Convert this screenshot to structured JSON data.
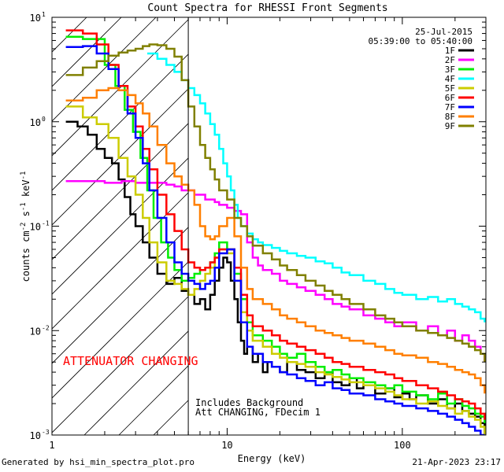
{
  "chart_data": {
    "type": "line",
    "title": "Count Spectra for RHESSI Front Segments",
    "date": "25-Jul-2015",
    "time_range": "05:39:00 to 05:40:00",
    "xlabel": "Energy (keV)",
    "ylabel_main": "counts cm",
    "ylabel_sup1": "-2",
    "ylabel_mid": " s",
    "ylabel_sup2": "-1",
    "ylabel_end": " keV",
    "ylabel_sup3": "-1",
    "xscale": "log",
    "yscale": "log",
    "xlim": [
      1,
      300
    ],
    "ylim": [
      0.001,
      10
    ],
    "x_ticks": [
      {
        "v": 10,
        "label": "10"
      },
      {
        "v": 100,
        "label": "100"
      }
    ],
    "y_ticks": [
      {
        "v": 0.001,
        "base": "10",
        "exp": "-3"
      },
      {
        "v": 0.01,
        "base": "10",
        "exp": "-2"
      },
      {
        "v": 0.1,
        "base": "10",
        "exp": "-1"
      },
      {
        "v": 1,
        "base": "10",
        "exp": "0"
      },
      {
        "v": 10,
        "base": "10",
        "exp": "1"
      }
    ],
    "x_label_1": "1",
    "attenuator_line_x": 6,
    "attenuator_label": "ATTENUATOR CHANGING",
    "notes": [
      "Includes Background",
      "Att CHANGING, FDecim 1"
    ],
    "series": [
      {
        "name": "1F",
        "color": "#000000",
        "x": [
          1.2,
          1.4,
          1.6,
          1.8,
          2.0,
          2.2,
          2.4,
          2.6,
          2.8,
          3.0,
          3.3,
          3.6,
          4.0,
          4.5,
          5.0,
          5.5,
          6.0,
          6.5,
          7,
          7.5,
          8,
          8.5,
          9,
          9.5,
          10,
          10.5,
          11,
          11.5,
          12,
          12.5,
          13,
          14,
          15,
          16,
          17,
          18,
          20,
          22,
          25,
          28,
          32,
          36,
          40,
          45,
          50,
          55,
          60,
          70,
          80,
          90,
          100,
          110,
          120,
          140,
          160,
          180,
          200,
          220,
          240,
          260,
          280,
          295
        ],
        "y": [
          1.0,
          0.9,
          0.75,
          0.55,
          0.45,
          0.4,
          0.28,
          0.19,
          0.13,
          0.1,
          0.07,
          0.05,
          0.035,
          0.028,
          0.032,
          0.024,
          0.022,
          0.018,
          0.02,
          0.016,
          0.022,
          0.03,
          0.04,
          0.05,
          0.045,
          0.03,
          0.02,
          0.012,
          0.008,
          0.006,
          0.007,
          0.005,
          0.006,
          0.004,
          0.005,
          0.0045,
          0.004,
          0.005,
          0.0042,
          0.004,
          0.0035,
          0.004,
          0.0032,
          0.003,
          0.0035,
          0.0028,
          0.003,
          0.0025,
          0.0028,
          0.0023,
          0.0025,
          0.0022,
          0.0024,
          0.002,
          0.0022,
          0.0018,
          0.002,
          0.0017,
          0.0016,
          0.0015,
          0.0013,
          0.001
        ]
      },
      {
        "name": "2F",
        "color": "#ff00ff",
        "x": [
          1.2,
          1.5,
          2.0,
          2.5,
          3.0,
          3.5,
          4.0,
          4.5,
          5.0,
          5.5,
          6.0,
          6.5,
          7,
          7.5,
          8,
          8.5,
          9,
          10,
          11,
          12,
          13,
          14,
          15,
          16,
          18,
          20,
          22,
          25,
          28,
          32,
          36,
          40,
          45,
          50,
          60,
          70,
          80,
          90,
          100,
          120,
          140,
          160,
          180,
          200,
          220,
          240,
          260,
          280,
          295
        ],
        "y": [
          0.27,
          0.27,
          0.26,
          0.27,
          0.26,
          0.26,
          0.26,
          0.25,
          0.24,
          0.22,
          0.22,
          0.2,
          0.2,
          0.18,
          0.18,
          0.17,
          0.16,
          0.15,
          0.14,
          0.13,
          0.07,
          0.05,
          0.042,
          0.038,
          0.035,
          0.03,
          0.028,
          0.026,
          0.024,
          0.022,
          0.02,
          0.018,
          0.017,
          0.016,
          0.014,
          0.013,
          0.012,
          0.011,
          0.012,
          0.01,
          0.011,
          0.009,
          0.01,
          0.008,
          0.009,
          0.008,
          0.007,
          0.006,
          0.005
        ]
      },
      {
        "name": "3F",
        "color": "#00ee00",
        "x": [
          1.2,
          1.5,
          2.0,
          2.3,
          2.6,
          2.9,
          3.2,
          3.5,
          3.8,
          4.2,
          4.6,
          5.0,
          5.5,
          6.0,
          6.5,
          7,
          7.5,
          8,
          8.5,
          9,
          10,
          11,
          12,
          13,
          14,
          16,
          18,
          20,
          22,
          25,
          28,
          32,
          36,
          40,
          45,
          50,
          60,
          70,
          80,
          90,
          100,
          120,
          140,
          160,
          180,
          200,
          220,
          240,
          260,
          280,
          295
        ],
        "y": [
          6.5,
          6.2,
          3.5,
          2.2,
          1.3,
          0.8,
          0.45,
          0.22,
          0.12,
          0.07,
          0.05,
          0.038,
          0.03,
          0.032,
          0.035,
          0.038,
          0.04,
          0.045,
          0.055,
          0.07,
          0.06,
          0.035,
          0.02,
          0.012,
          0.009,
          0.008,
          0.007,
          0.006,
          0.0055,
          0.006,
          0.005,
          0.0045,
          0.004,
          0.0042,
          0.0038,
          0.0035,
          0.0032,
          0.003,
          0.0028,
          0.003,
          0.0026,
          0.0024,
          0.0022,
          0.0025,
          0.002,
          0.0022,
          0.0019,
          0.0018,
          0.0016,
          0.0015,
          0.0013
        ]
      },
      {
        "name": "4F",
        "color": "#00ffff",
        "x": [
          3.5,
          4.0,
          4.5,
          5.0,
          5.5,
          6.0,
          6.5,
          7,
          7.5,
          8,
          8.5,
          9,
          9.5,
          10,
          10.5,
          11,
          11.5,
          12,
          13,
          14,
          15,
          16,
          18,
          20,
          22,
          25,
          28,
          32,
          36,
          40,
          45,
          50,
          60,
          70,
          80,
          90,
          100,
          120,
          140,
          160,
          180,
          200,
          220,
          240,
          260,
          280,
          295
        ],
        "y": [
          4.5,
          4.0,
          3.5,
          3.0,
          2.5,
          2.1,
          1.8,
          1.5,
          1.2,
          0.95,
          0.75,
          0.55,
          0.4,
          0.3,
          0.22,
          0.16,
          0.12,
          0.1,
          0.085,
          0.075,
          0.07,
          0.066,
          0.062,
          0.058,
          0.055,
          0.052,
          0.05,
          0.046,
          0.044,
          0.04,
          0.036,
          0.034,
          0.03,
          0.028,
          0.025,
          0.023,
          0.022,
          0.02,
          0.021,
          0.019,
          0.02,
          0.018,
          0.017,
          0.016,
          0.015,
          0.013,
          0.012
        ]
      },
      {
        "name": "5F",
        "color": "#cccc00",
        "x": [
          1.2,
          1.5,
          1.8,
          2.1,
          2.4,
          2.7,
          3.0,
          3.3,
          3.6,
          4.0,
          4.5,
          5.0,
          5.5,
          6.0,
          6.5,
          7,
          7.5,
          8,
          8.5,
          9,
          10,
          11,
          12,
          13,
          14,
          16,
          18,
          20,
          22,
          25,
          28,
          32,
          36,
          40,
          45,
          50,
          60,
          70,
          80,
          90,
          100,
          120,
          140,
          160,
          180,
          200,
          220,
          240,
          260,
          280,
          295
        ],
        "y": [
          1.4,
          1.1,
          0.95,
          0.7,
          0.45,
          0.3,
          0.2,
          0.12,
          0.07,
          0.045,
          0.03,
          0.028,
          0.025,
          0.022,
          0.025,
          0.03,
          0.035,
          0.04,
          0.05,
          0.06,
          0.055,
          0.03,
          0.015,
          0.01,
          0.008,
          0.007,
          0.006,
          0.0055,
          0.005,
          0.0048,
          0.0045,
          0.004,
          0.0038,
          0.0036,
          0.0034,
          0.0032,
          0.003,
          0.0028,
          0.0026,
          0.0024,
          0.0022,
          0.002,
          0.0021,
          0.0019,
          0.0018,
          0.0016,
          0.0017,
          0.0015,
          0.0014,
          0.0012,
          0.001
        ]
      },
      {
        "name": "6F",
        "color": "#ff0000",
        "x": [
          1.2,
          1.5,
          1.8,
          2.1,
          2.4,
          2.7,
          3.0,
          3.3,
          3.6,
          4.0,
          4.5,
          5.0,
          5.5,
          6.0,
          6.5,
          7,
          7.5,
          8,
          8.5,
          9,
          10,
          11,
          12,
          13,
          14,
          16,
          18,
          20,
          22,
          25,
          28,
          32,
          36,
          40,
          45,
          50,
          60,
          70,
          80,
          90,
          100,
          120,
          140,
          160,
          180,
          200,
          220,
          240,
          260,
          280,
          295
        ],
        "y": [
          7.5,
          7.0,
          5.5,
          3.5,
          2.2,
          1.4,
          0.9,
          0.55,
          0.35,
          0.2,
          0.13,
          0.09,
          0.06,
          0.045,
          0.04,
          0.038,
          0.04,
          0.045,
          0.05,
          0.06,
          0.06,
          0.04,
          0.022,
          0.014,
          0.011,
          0.01,
          0.009,
          0.008,
          0.0075,
          0.007,
          0.0065,
          0.006,
          0.0055,
          0.005,
          0.0048,
          0.0045,
          0.0042,
          0.004,
          0.0038,
          0.0035,
          0.0033,
          0.003,
          0.0028,
          0.0026,
          0.0024,
          0.0022,
          0.0021,
          0.002,
          0.0018,
          0.0016,
          0.0014
        ]
      },
      {
        "name": "7F",
        "color": "#0000ff",
        "x": [
          1.2,
          1.5,
          1.8,
          2.1,
          2.4,
          2.7,
          3.0,
          3.3,
          3.6,
          4.0,
          4.5,
          5.0,
          5.5,
          6.0,
          6.5,
          7,
          7.5,
          8,
          8.5,
          9,
          10,
          11,
          12,
          13,
          14,
          16,
          18,
          20,
          22,
          25,
          28,
          32,
          36,
          40,
          45,
          50,
          60,
          70,
          80,
          90,
          100,
          120,
          140,
          160,
          180,
          200,
          220,
          240,
          260,
          280,
          295
        ],
        "y": [
          5.2,
          5.3,
          4.5,
          3.2,
          2.0,
          1.2,
          0.7,
          0.4,
          0.22,
          0.12,
          0.07,
          0.045,
          0.035,
          0.03,
          0.028,
          0.025,
          0.028,
          0.03,
          0.04,
          0.055,
          0.06,
          0.03,
          0.012,
          0.007,
          0.006,
          0.005,
          0.0045,
          0.004,
          0.0038,
          0.0035,
          0.0033,
          0.003,
          0.0032,
          0.0028,
          0.0027,
          0.0025,
          0.0024,
          0.0022,
          0.0021,
          0.002,
          0.0019,
          0.0018,
          0.0017,
          0.0016,
          0.0015,
          0.0014,
          0.0013,
          0.0012,
          0.0011,
          0.001,
          0.001
        ]
      },
      {
        "name": "8F",
        "color": "#ff7f00",
        "x": [
          1.2,
          1.5,
          1.8,
          2.1,
          2.4,
          2.7,
          3.0,
          3.3,
          3.6,
          4.0,
          4.5,
          5.0,
          5.5,
          6.0,
          6.5,
          7,
          7.5,
          8,
          8.5,
          9,
          10,
          11,
          12,
          13,
          14,
          16,
          18,
          20,
          22,
          25,
          28,
          32,
          36,
          40,
          45,
          50,
          60,
          70,
          80,
          90,
          100,
          120,
          140,
          160,
          180,
          200,
          220,
          240,
          260,
          280,
          295
        ],
        "y": [
          1.6,
          1.7,
          2.0,
          2.1,
          2.0,
          1.8,
          1.5,
          1.2,
          0.9,
          0.6,
          0.4,
          0.3,
          0.25,
          0.22,
          0.16,
          0.1,
          0.08,
          0.075,
          0.08,
          0.1,
          0.12,
          0.08,
          0.04,
          0.025,
          0.02,
          0.018,
          0.016,
          0.014,
          0.013,
          0.012,
          0.011,
          0.01,
          0.0095,
          0.009,
          0.0085,
          0.008,
          0.0075,
          0.007,
          0.0065,
          0.006,
          0.0058,
          0.0055,
          0.005,
          0.0048,
          0.0045,
          0.0042,
          0.004,
          0.0038,
          0.0035,
          0.003,
          0.0025
        ]
      },
      {
        "name": "9F",
        "color": "#808000",
        "x": [
          1.2,
          1.5,
          1.8,
          2.1,
          2.4,
          2.7,
          3.0,
          3.3,
          3.6,
          4.0,
          4.5,
          5.0,
          5.5,
          6.0,
          6.5,
          7,
          7.5,
          8,
          8.5,
          9,
          10,
          11,
          12,
          13,
          14,
          16,
          18,
          20,
          22,
          25,
          28,
          32,
          36,
          40,
          45,
          50,
          60,
          70,
          80,
          90,
          100,
          120,
          140,
          160,
          180,
          200,
          220,
          240,
          260,
          280,
          295
        ],
        "y": [
          2.8,
          3.3,
          3.8,
          4.3,
          4.6,
          4.8,
          5.0,
          5.3,
          5.5,
          5.4,
          5.0,
          4.2,
          2.5,
          1.4,
          0.9,
          0.6,
          0.45,
          0.35,
          0.28,
          0.22,
          0.18,
          0.12,
          0.1,
          0.08,
          0.065,
          0.055,
          0.048,
          0.042,
          0.038,
          0.034,
          0.03,
          0.027,
          0.024,
          0.022,
          0.02,
          0.018,
          0.016,
          0.014,
          0.013,
          0.012,
          0.011,
          0.01,
          0.0095,
          0.009,
          0.0085,
          0.008,
          0.0075,
          0.007,
          0.0065,
          0.006,
          0.005
        ]
      }
    ]
  },
  "footer": {
    "generated_by": "Generated by hsi_min_spectra_plot.pro",
    "timestamp": "21-Apr-2023 23:17"
  }
}
